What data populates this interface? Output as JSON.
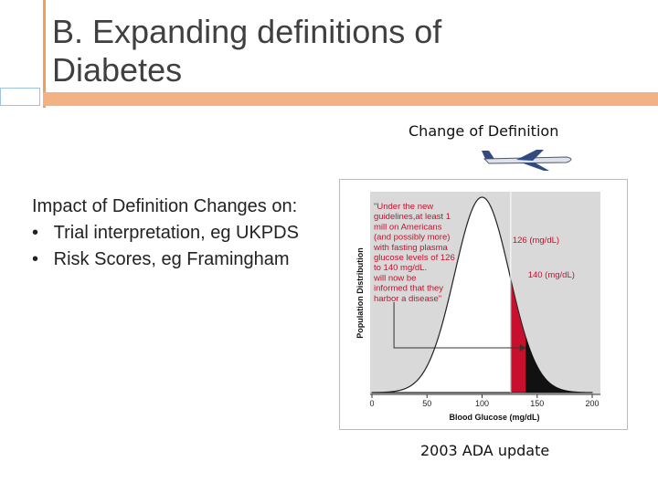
{
  "header": {
    "title_prefix": "B.",
    "title": "Expanding definitions of Diabetes"
  },
  "figure_caption_top": "Change of Definition",
  "body": {
    "intro": "Impact of Definition Changes on:",
    "bullets": [
      "Trial interpretation, eg UKPDS",
      "Risk Scores, eg Framingham"
    ]
  },
  "figure": {
    "y_label": "Population Distribution",
    "x_label": "Blood Glucose (mg/dL)",
    "x_ticks": [
      0,
      50,
      100,
      150,
      200
    ],
    "quote": [
      "\"Under the new",
      "guidelines,at least 1",
      "mill on Americans",
      "(and possibly more)",
      "with fasting plasma",
      "glucose levels of 126",
      "to 140 mg/dL.",
      "will now be",
      "informed that they",
      "harbor a disease\""
    ],
    "thresholds": [
      {
        "value": 126,
        "label": "126 (mg/dL)"
      },
      {
        "value": 140,
        "label": "140 (mg/dL)"
      }
    ]
  },
  "figure_caption_bottom": "2003 ADA update"
}
